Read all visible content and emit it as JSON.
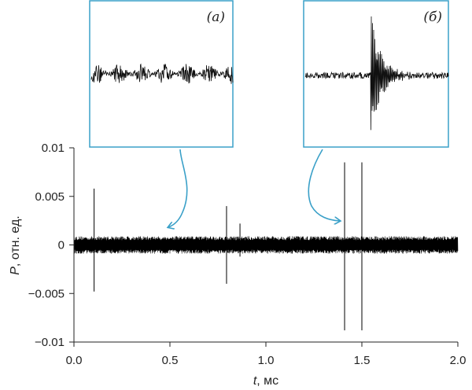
{
  "chart_data": {
    "type": "line",
    "xlabel": {
      "var": "t",
      "unit": ", мс"
    },
    "ylabel": {
      "var": "P",
      "unit": ", отн. ед."
    },
    "xlim": [
      0.0,
      2.0
    ],
    "ylim": [
      -0.01,
      0.01
    ],
    "x_ticks": [
      "0.0",
      "0.5",
      "1.0",
      "1.5",
      "2.0"
    ],
    "y_ticks": [
      "0.01",
      "0.005",
      "0",
      "−0.005",
      "−0.01"
    ],
    "grid": false,
    "noise_band_amplitude": 0.0009,
    "spikes": [
      {
        "t": 0.105,
        "max": 0.0058,
        "min": -0.0048
      },
      {
        "t": 0.795,
        "max": 0.004,
        "min": -0.004
      },
      {
        "t": 0.865,
        "max": 0.0022,
        "min": -0.0012
      },
      {
        "t": 1.41,
        "max": 0.0085,
        "min": -0.0088
      },
      {
        "t": 1.5,
        "max": 0.0085,
        "min": -0.0088
      }
    ],
    "insets": [
      {
        "label": "(а)",
        "description_t": 0.5,
        "content": "noise"
      },
      {
        "label": "(б)",
        "description_t": 1.41,
        "content": "pulse"
      }
    ],
    "colors": {
      "trace": "#000000",
      "inset_frame": "#3aa0c8",
      "arrow": "#3aa0c8"
    }
  }
}
